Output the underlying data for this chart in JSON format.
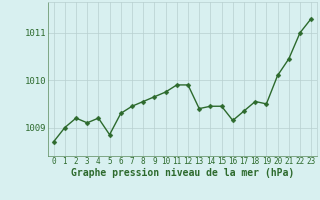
{
  "x": [
    0,
    1,
    2,
    3,
    4,
    5,
    6,
    7,
    8,
    9,
    10,
    11,
    12,
    13,
    14,
    15,
    16,
    17,
    18,
    19,
    20,
    21,
    22,
    23
  ],
  "y": [
    1008.7,
    1009.0,
    1009.2,
    1009.1,
    1009.2,
    1008.85,
    1009.3,
    1009.45,
    1009.55,
    1009.65,
    1009.75,
    1009.9,
    1009.9,
    1009.4,
    1009.45,
    1009.45,
    1009.15,
    1009.35,
    1009.55,
    1009.5,
    1010.1,
    1010.45,
    1011.0,
    1011.3
  ],
  "line_color": "#2d6a2d",
  "marker": "D",
  "marker_size": 2.5,
  "line_width": 1.0,
  "bg_color": "#d8f0f0",
  "grid_color": "#b8d0d0",
  "xlabel": "Graphe pression niveau de la mer (hPa)",
  "xlabel_color": "#2d6a2d",
  "xlabel_fontsize": 7,
  "tick_color": "#2d6a2d",
  "tick_fontsize": 5.5,
  "ytick_fontsize": 6.5,
  "ylim": [
    1008.4,
    1011.65
  ],
  "yticks": [
    1009,
    1010,
    1011
  ],
  "xlim": [
    -0.5,
    23.5
  ],
  "figsize": [
    3.2,
    2.0
  ],
  "dpi": 100
}
